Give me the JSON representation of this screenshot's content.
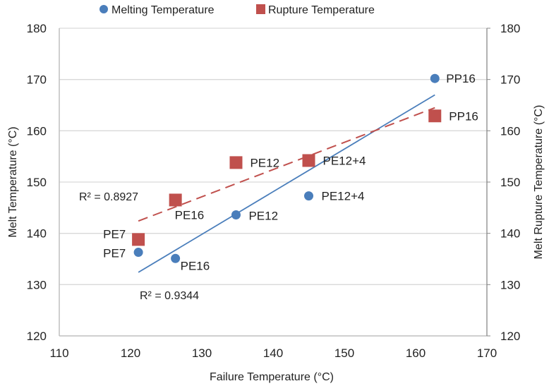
{
  "chart_data": {
    "type": "scatter",
    "title": "",
    "xlabel": "Failure Temperature (°C)",
    "ylabel": "Melt Temperature (°C)",
    "y2label": "Melt Rupture Temperature (°C)",
    "xlim": [
      110,
      170
    ],
    "ylim": [
      120,
      180
    ],
    "y2lim": [
      120,
      180
    ],
    "x_ticks": [
      110,
      120,
      130,
      140,
      150,
      160,
      170
    ],
    "y_ticks": [
      120,
      130,
      140,
      150,
      160,
      170,
      180
    ],
    "y2_ticks": [
      120,
      130,
      140,
      150,
      160,
      170,
      180
    ],
    "grid": "horizontal",
    "legend_position": "top-center",
    "series": [
      {
        "name": "Melting Temperature",
        "marker": "circle",
        "color": "#4a7ebb",
        "points": [
          {
            "label": "PE7",
            "x": 121.1,
            "y": 136.3
          },
          {
            "label": "PE16",
            "x": 126.3,
            "y": 135.1
          },
          {
            "label": "PE12",
            "x": 134.8,
            "y": 143.6
          },
          {
            "label": "PE12+4",
            "x": 145.0,
            "y": 147.3
          },
          {
            "label": "PP16",
            "x": 162.7,
            "y": 170.2
          }
        ],
        "trendline": {
          "style": "solid",
          "x_start": 121.1,
          "y_start": 132.4,
          "x_end": 162.7,
          "y_end": 167.0,
          "r2_label": "R² = 0.9344"
        }
      },
      {
        "name": "Rupture Temperature",
        "marker": "square",
        "color": "#c0504d",
        "points": [
          {
            "label": "PE7",
            "x": 121.1,
            "y": 138.8
          },
          {
            "label": "PE16",
            "x": 126.3,
            "y": 146.5
          },
          {
            "label": "PE12",
            "x": 134.8,
            "y": 153.8
          },
          {
            "label": "PE12+4",
            "x": 145.0,
            "y": 154.2
          },
          {
            "label": "PP16",
            "x": 162.7,
            "y": 162.9
          }
        ],
        "trendline": {
          "style": "dashed",
          "x_start": 121.1,
          "y_start": 142.4,
          "x_end": 162.7,
          "y_end": 164.5,
          "r2_label": "R² = 0.8927"
        }
      }
    ]
  }
}
